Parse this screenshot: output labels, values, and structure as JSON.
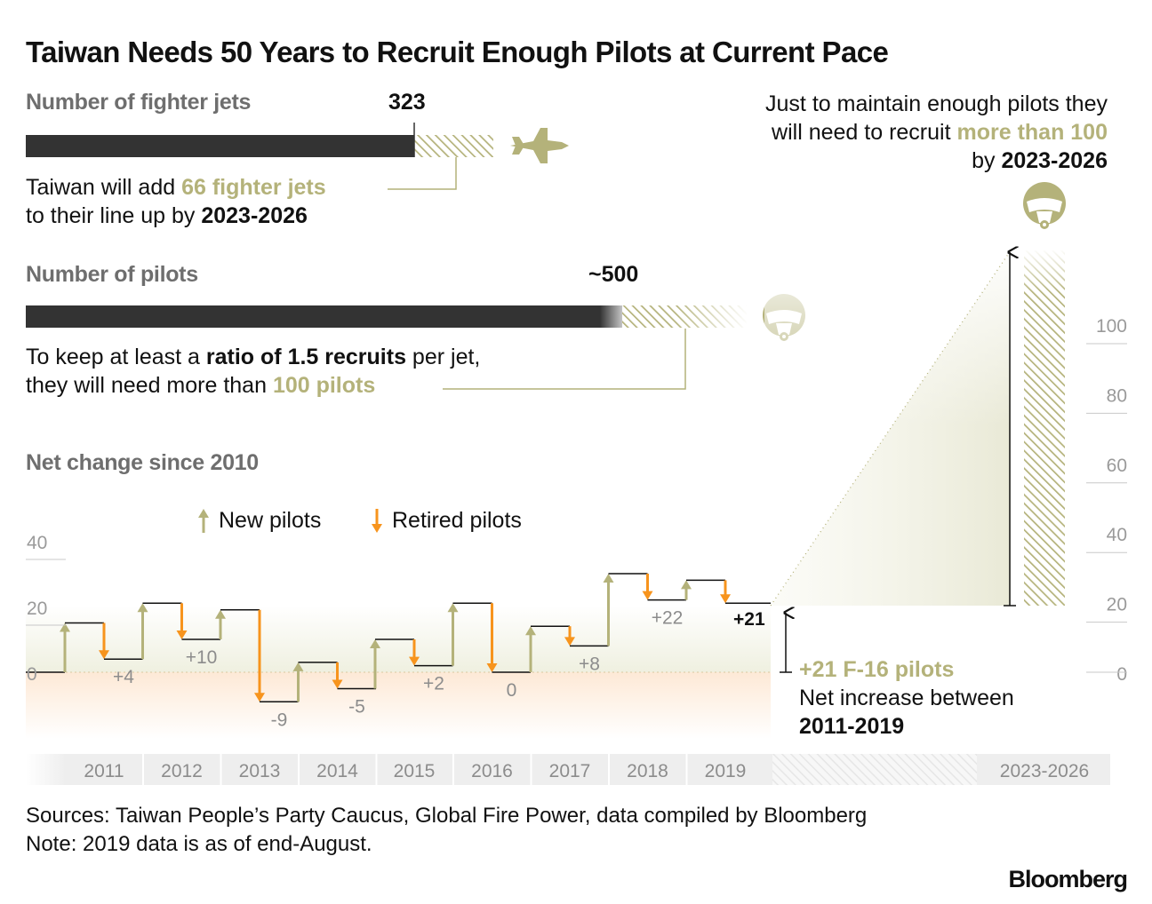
{
  "title": "Taiwan Needs 50 Years to Recruit Enough Pilots at Current Pace",
  "jets": {
    "label": "Number of fighter jets",
    "value_label": "323",
    "current": 323,
    "added": 66,
    "note_pre": "Taiwan will add ",
    "note_highlight": "66 fighter jets",
    "note_mid": "to their line up by ",
    "note_period": "2023-2026",
    "icon": "fighter-jet-icon"
  },
  "pilots": {
    "label": "Number of pilots",
    "value_label": "~500",
    "current": 500,
    "needed": 100,
    "note_pre": "To keep at least a ",
    "note_bold": "ratio of 1.5 recruits",
    "note_post": " per jet,",
    "note_line2_pre": "they will need more than ",
    "note_highlight": "100 pilots",
    "icon": "pilot-helmet-icon"
  },
  "right_note": {
    "line1": "Just to maintain enough pilots they",
    "line2_pre": "will need to recruit ",
    "line2_highlight": "more than 100",
    "line3_pre": "by ",
    "line3_bold": "2023-2026"
  },
  "net_change": {
    "label": "Net change since 2010",
    "legend_new": "New pilots",
    "legend_retired": "Retired pilots",
    "final_label": "+21",
    "callout_highlight": "+21 F-16 pilots",
    "callout_line2": "Net increase between",
    "callout_line3": "2011-2019"
  },
  "chart_data": [
    {
      "type": "bar",
      "categories": [
        "Number of fighter jets"
      ],
      "series": [
        {
          "name": "",
          "values": [
            323
          ]
        },
        {
          "name": "",
          "values": [
            66
          ]
        }
      ]
    },
    {
      "type": "bar",
      "categories": [
        "Number of pilots"
      ],
      "series": [
        {
          "name": "",
          "values": [
            500
          ]
        },
        {
          "name": "",
          "values": [
            100
          ]
        }
      ]
    },
    {
      "type": "line",
      "title": "Net change since 2010",
      "ylim": [
        -15,
        45
      ],
      "yticks": [
        0,
        20,
        40
      ],
      "x": [
        "2011",
        "2012",
        "2013",
        "2014",
        "2015",
        "2016",
        "2017",
        "2018",
        "2019"
      ],
      "series": [
        {
          "name": "New pilots",
          "values": [
            15,
            21,
            19,
            3,
            10,
            21,
            14,
            30,
            28
          ]
        },
        {
          "name": "Retired pilots",
          "values": [
            15,
            21,
            19,
            3,
            10,
            21,
            14,
            30,
            28
          ]
        }
      ],
      "steps": [
        {
          "year": "2011",
          "start": 0,
          "peak": 15,
          "end": 4,
          "label": "+4"
        },
        {
          "year": "2012",
          "start": 4,
          "peak": 21,
          "end": 10,
          "label": "+10"
        },
        {
          "year": "2013",
          "start": 10,
          "peak": 19,
          "end": -9,
          "label": "-9"
        },
        {
          "year": "2014",
          "start": -9,
          "peak": 3,
          "end": -5,
          "label": "-5"
        },
        {
          "year": "2015",
          "start": -5,
          "peak": 10,
          "end": 2,
          "label": "+2"
        },
        {
          "year": "2016",
          "start": 2,
          "peak": 21,
          "end": 0,
          "label": "0"
        },
        {
          "year": "2017",
          "start": 0,
          "peak": 14,
          "end": 8,
          "label": "+8"
        },
        {
          "year": "2018",
          "start": 8,
          "peak": 30,
          "end": 22,
          "label": "+22"
        },
        {
          "year": "2019",
          "start": 22,
          "peak": 28,
          "end": 21,
          "label": "+21"
        }
      ],
      "final_value": 21,
      "legend_placement": "top"
    },
    {
      "type": "bar",
      "categories": [
        "2023-2026"
      ],
      "values": [
        100
      ],
      "ylim": [
        0,
        110
      ],
      "yticks": [
        0,
        20,
        40,
        60,
        80,
        100
      ]
    }
  ],
  "x_axis_labels": [
    "2011",
    "2012",
    "2013",
    "2014",
    "2015",
    "2016",
    "2017",
    "2018",
    "2019",
    "2023-2026"
  ],
  "colors": {
    "dark_bar": "#333333",
    "olive": "#b4b27a",
    "orange": "#f7941d",
    "positive_band": "#f2f2e4",
    "negative_band": "#fdeedd",
    "gridline": "#c8c8c8",
    "axis_band": "#eeeeee"
  },
  "footer": {
    "sources": "Sources: Taiwan People’s Party Caucus, Global Fire Power, data compiled by Bloomberg",
    "note": "Note: 2019 data is as of end-August.",
    "brand": "Bloomberg"
  }
}
